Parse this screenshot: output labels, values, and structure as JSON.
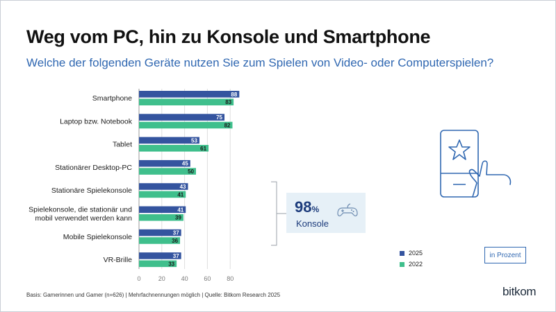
{
  "title": "Weg vom PC, hin zu Konsole und Smartphone",
  "subtitle": "Welche der folgenden Geräte nutzen Sie zum Spielen von Video- oder Computerspielen?",
  "chart_data": {
    "type": "bar",
    "orientation": "horizontal",
    "title": "Weg vom PC, hin zu Konsole und Smartphone",
    "subtitle": "Welche der folgenden Geräte nutzen Sie zum Spielen von Video- oder Computerspielen?",
    "categories": [
      [
        "Smartphone"
      ],
      [
        "Laptop bzw. Notebook"
      ],
      [
        "Tablet"
      ],
      [
        "Stationärer Desktop-PC"
      ],
      [
        "Stationäre Spielekonsole"
      ],
      [
        "Spielekonsole, die stationär und",
        "mobil verwendet werden kann"
      ],
      [
        "Mobile Spielekonsole"
      ],
      [
        "VR-Brille"
      ]
    ],
    "series": [
      {
        "name": "2025",
        "color": "#34549f",
        "values": [
          88,
          75,
          53,
          45,
          43,
          41,
          37,
          37
        ]
      },
      {
        "name": "2022",
        "color": "#3fbf8c",
        "values": [
          83,
          82,
          61,
          50,
          41,
          39,
          36,
          33
        ]
      }
    ],
    "xlim": [
      0,
      90
    ],
    "xticks": [
      0,
      20,
      40,
      60,
      80
    ],
    "xlabel": "",
    "ylabel": "",
    "grid": true,
    "legend": "bottom-right",
    "unit": "in Prozent",
    "annotation": {
      "value": "98",
      "unit": "%",
      "label": "Konsole",
      "bracket_categories": [
        4,
        5,
        6
      ]
    }
  },
  "annotation": {
    "value": "98",
    "unit": "%",
    "label": "Konsole"
  },
  "legend": {
    "items": [
      {
        "label": "2025",
        "color": "#34549f"
      },
      {
        "label": "2022",
        "color": "#3fbf8c"
      }
    ]
  },
  "unit_label": "in Prozent",
  "footnote": "Basis: Gamerinnen und Gamer (n=626) | Mehrfachnennungen möglich | Quelle: Bitkom Research 2025",
  "logo": "bitkom",
  "icons": [
    "phone-touch-star-icon",
    "gamepad-icon"
  ]
}
